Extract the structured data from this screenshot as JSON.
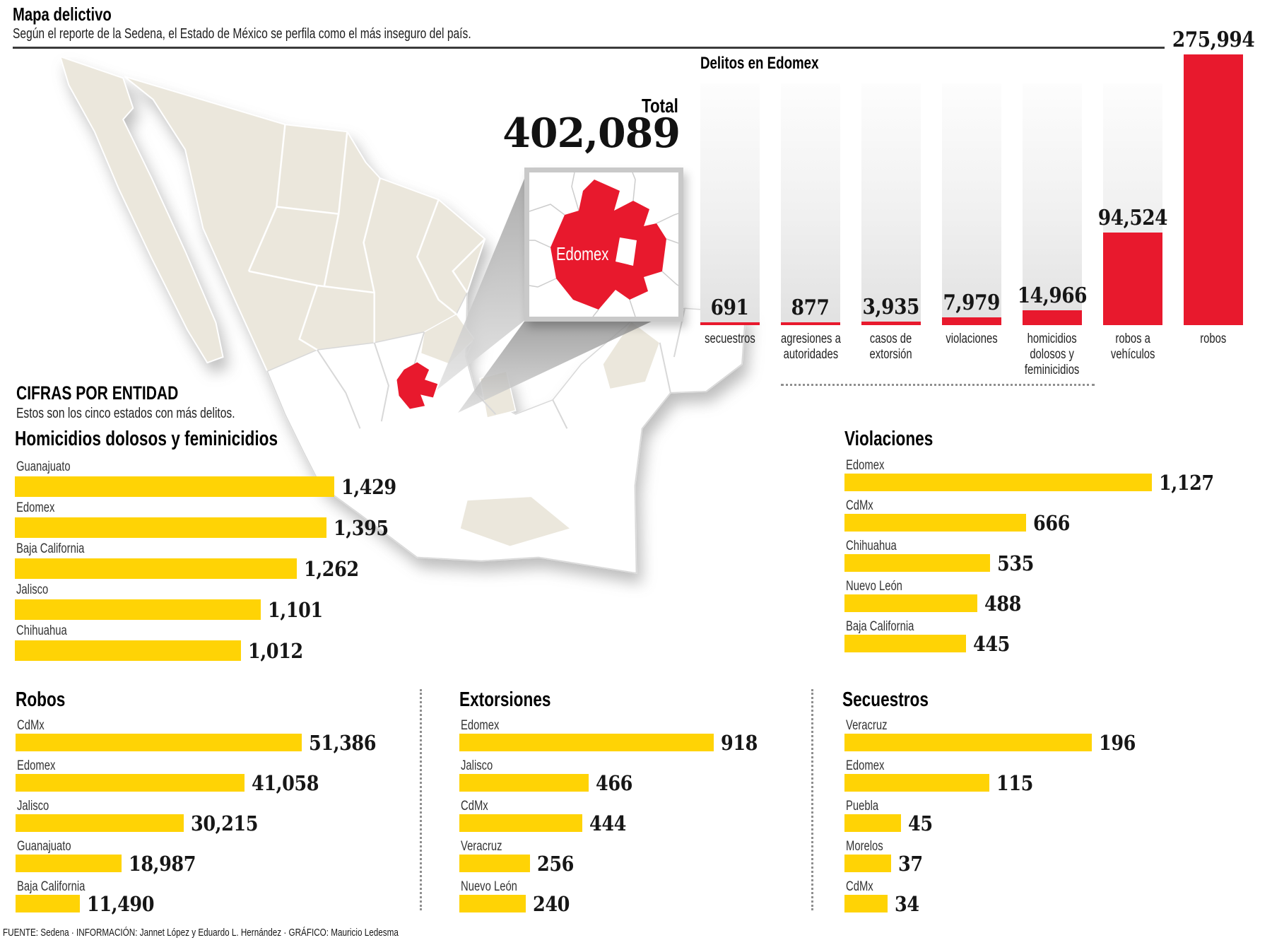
{
  "header": {
    "title": "Mapa delictivo",
    "subtitle": "Según el reporte de la Sedena, el Estado de México se perfila como el más inseguro del país."
  },
  "map": {
    "inset_label": "Edomex",
    "highlight_color": "#e8192d",
    "land_color": "#ebe7dc"
  },
  "section": {
    "title": "CIFRAS POR ENTIDAD",
    "subtitle": "Estos son los cinco estados con más delitos."
  },
  "chart_data": [
    {
      "id": "delitos-edomex",
      "type": "bar",
      "orientation": "vertical",
      "title": "Delitos en Edomex",
      "total_label": "Total",
      "total_value": "402,089",
      "total": 402089,
      "categories": [
        "secuestros",
        "agresiones a\nautoridades",
        "casos de\nextorsión",
        "violaciones",
        "homicidios\ndolosos y\nfeminicidios",
        "robos a\nvehículos",
        "robos"
      ],
      "values": [
        691,
        877,
        3935,
        7979,
        14966,
        94524,
        275994
      ],
      "value_labels": [
        "691",
        "877",
        "3,935",
        "7,979",
        "14,966",
        "94,524",
        "275,994"
      ],
      "bar_color": "#e8192d",
      "track_color": "#e1e1e1",
      "ylim": [
        0,
        275994
      ],
      "grid": false,
      "legend": "none"
    },
    {
      "id": "homicidios",
      "type": "bar",
      "orientation": "horizontal",
      "title": "Homicidios dolosos y feminicidios",
      "categories": [
        "Guanajuato",
        "Edomex",
        "Baja California",
        "Jalisco",
        "Chihuahua"
      ],
      "values": [
        1429,
        1395,
        1262,
        1101,
        1012
      ],
      "value_labels": [
        "1,429",
        "1,395",
        "1,262",
        "1,101",
        "1,012"
      ],
      "bar_color": "#ffd305"
    },
    {
      "id": "violaciones",
      "type": "bar",
      "orientation": "horizontal",
      "title": "Violaciones",
      "categories": [
        "Edomex",
        "CdMx",
        "Chihuahua",
        "Nuevo León",
        "Baja California"
      ],
      "values": [
        1127,
        666,
        535,
        488,
        445
      ],
      "value_labels": [
        "1,127",
        "666",
        "535",
        "488",
        "445"
      ],
      "bar_color": "#ffd305"
    },
    {
      "id": "robos",
      "type": "bar",
      "orientation": "horizontal",
      "title": "Robos",
      "categories": [
        "CdMx",
        "Edomex",
        "Jalisco",
        "Guanajuato",
        "Baja California"
      ],
      "values": [
        51386,
        41058,
        30215,
        18987,
        11490
      ],
      "value_labels": [
        "51,386",
        "41,058",
        "30,215",
        "18,987",
        "11,490"
      ],
      "bar_color": "#ffd305"
    },
    {
      "id": "extorsiones",
      "type": "bar",
      "orientation": "horizontal",
      "title": "Extorsiones",
      "categories": [
        "Edomex",
        "Jalisco",
        "CdMx",
        "Veracruz",
        "Nuevo León"
      ],
      "values": [
        918,
        466,
        444,
        256,
        240
      ],
      "value_labels": [
        "918",
        "466",
        "444",
        "256",
        "240"
      ],
      "bar_color": "#ffd305"
    },
    {
      "id": "secuestros",
      "type": "bar",
      "orientation": "horizontal",
      "title": "Secuestros",
      "categories": [
        "Veracruz",
        "Edomex",
        "Puebla",
        "Morelos",
        "CdMx"
      ],
      "values": [
        196,
        115,
        45,
        37,
        34
      ],
      "value_labels": [
        "196",
        "115",
        "45",
        "37",
        "34"
      ],
      "bar_color": "#ffd305"
    }
  ],
  "footer": {
    "text": "FUENTE: Sedena · INFORMACIÓN: Jannet López y Eduardo L. Hernández · GRÁFICO: Mauricio Ledesma"
  }
}
